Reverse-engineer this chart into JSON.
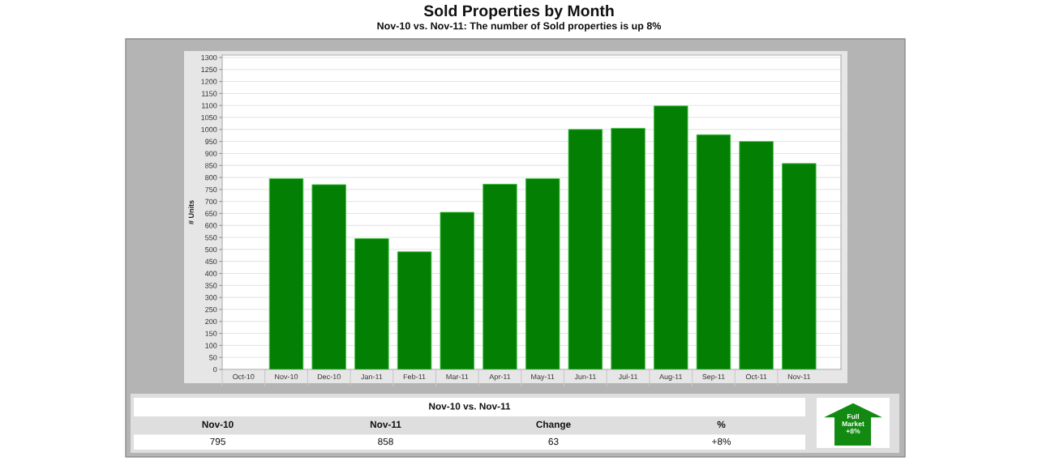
{
  "chart_data": [
    {
      "type": "bar",
      "title": "Sold Properties by Month",
      "subtitle": "Nov-10 vs. Nov-11: The number of Sold properties is up 8%",
      "ylabel": "# Units",
      "categories": [
        "Oct-10",
        "Nov-10",
        "Dec-10",
        "Jan-11",
        "Feb-11",
        "Mar-11",
        "Apr-11",
        "May-11",
        "Jun-11",
        "Jul-11",
        "Aug-11",
        "Sep-11",
        "Oct-11",
        "Nov-11"
      ],
      "values": [
        null,
        795,
        770,
        545,
        490,
        655,
        772,
        795,
        1000,
        1005,
        1098,
        978,
        950,
        858
      ],
      "color": "#037f03",
      "ylim": [
        0,
        1310
      ],
      "yticks": [
        0,
        50,
        100,
        150,
        200,
        250,
        300,
        350,
        400,
        450,
        500,
        550,
        600,
        650,
        700,
        750,
        800,
        850,
        900,
        950,
        1000,
        1050,
        1100,
        1150,
        1200,
        1250,
        1300
      ],
      "grid": "y"
    },
    {
      "type": "other",
      "title": "Nov-10 vs. Nov-11",
      "annotations": [
        "Nov-10",
        "Nov-11",
        "Change",
        "%",
        "795",
        "858",
        "63",
        "+8%"
      ]
    },
    {
      "type": "other",
      "annotations": [
        "Full\nMarket\n+8%"
      ]
    }
  ]
}
